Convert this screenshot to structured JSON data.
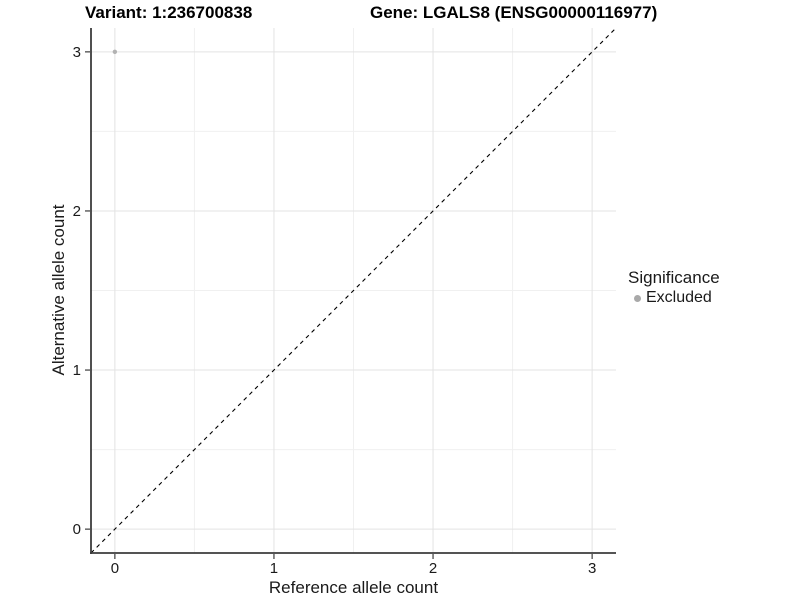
{
  "header": {
    "title_left": "Variant: 1:236700838",
    "title_right": "Gene: LGALS8 (ENSG00000116977)"
  },
  "chart_data": {
    "type": "scatter",
    "title": "Variant: 1:236700838   Gene: LGALS8 (ENSG00000116977)",
    "xlabel": "Reference allele count",
    "ylabel": "Alternative allele count",
    "xlim": [
      -0.15,
      3.15
    ],
    "ylim": [
      -0.15,
      3.15
    ],
    "x_ticks": [
      0,
      1,
      2,
      3
    ],
    "y_ticks": [
      0,
      1,
      2,
      3
    ],
    "x_minor_ticks": [
      0.5,
      1.5,
      2.5
    ],
    "y_minor_ticks": [
      0.5,
      1.5,
      2.5
    ],
    "grid": true,
    "series": [
      {
        "name": "Excluded",
        "color": "#b2b2b2",
        "points": [
          {
            "x": 0,
            "y": 3
          }
        ]
      }
    ],
    "reference_line": {
      "type": "identity",
      "equation": "y = x",
      "style": "dashed",
      "color": "#000000"
    },
    "legend": {
      "title": "Significance",
      "position": "right",
      "entries": [
        {
          "label": "Excluded",
          "color": "#a9a9a9",
          "marker": "circle"
        }
      ]
    }
  },
  "styles": {
    "background": "#ffffff",
    "grid_major": "#e3e3e3",
    "grid_minor": "#f0f0f0",
    "axis_line": "#3c3c3c",
    "tick_mark": "#3c3c3c",
    "tick_label_color": "#1a1a1a",
    "axis_title_color": "#1a1a1a",
    "title_color": "#000000"
  }
}
